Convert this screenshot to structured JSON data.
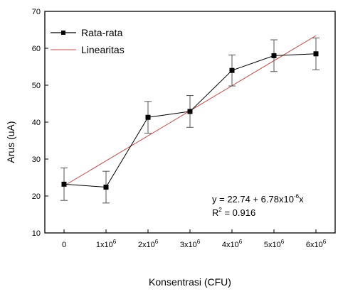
{
  "chart_data": {
    "type": "line",
    "xlabel": "Konsentrasi (CFU)",
    "ylabel": "Arus (uA)",
    "ylim": [
      10,
      70
    ],
    "y_ticks": [
      "10",
      "20",
      "30",
      "40",
      "50",
      "60",
      "70"
    ],
    "y_tick_values": [
      10,
      20,
      30,
      40,
      50,
      60,
      70
    ],
    "x_values": [
      0,
      1,
      2,
      3,
      4,
      5,
      6
    ],
    "x_ticks": [
      {
        "base": "0",
        "exp": ""
      },
      {
        "base": "1x10",
        "exp": "6"
      },
      {
        "base": "2x10",
        "exp": "6"
      },
      {
        "base": "3x10",
        "exp": "6"
      },
      {
        "base": "4x10",
        "exp": "6"
      },
      {
        "base": "5x10",
        "exp": "6"
      },
      {
        "base": "6x10",
        "exp": "6"
      }
    ],
    "x_unit_multiplier": 1000000,
    "series": [
      {
        "name": "Rata-rata",
        "color": "#000000",
        "marker": "square",
        "x": [
          0,
          1,
          2,
          3,
          4,
          5,
          6
        ],
        "y": [
          23.2,
          22.4,
          41.3,
          42.9,
          54.0,
          58.0,
          58.5
        ],
        "yerr": [
          4.4,
          4.3,
          4.3,
          4.3,
          4.2,
          4.3,
          4.3
        ]
      },
      {
        "name": "Linearitas",
        "color": "#c0504d",
        "type": "line",
        "intercept": 22.74,
        "slope_per_unit": 6.78
      }
    ],
    "annotation": {
      "equation_prefix": "y = 22.74 + 6.78x10",
      "equation_exp": "-6",
      "equation_suffix": "x",
      "r2_prefix": "R",
      "r2_exp": "2",
      "r2_suffix": " = 0.916"
    },
    "legend_position": "top-left",
    "grid": false
  }
}
